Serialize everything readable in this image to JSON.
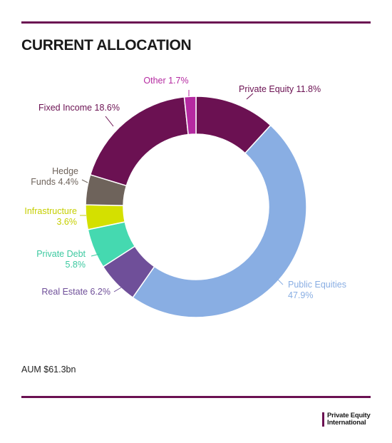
{
  "title": "CURRENT ALLOCATION",
  "aum": "AUM $61.3bn",
  "brand": {
    "line1": "Private Equity",
    "line2": "International"
  },
  "chart_data": {
    "type": "donut",
    "title": "CURRENT ALLOCATION",
    "unit": "%",
    "slices": [
      {
        "name": "Private Equity",
        "value": 11.8,
        "label": [
          "Private Equity 11.8%"
        ],
        "color": "#6b1152"
      },
      {
        "name": "Public Equities",
        "value": 47.9,
        "label": [
          "Public Equities",
          "47.9%"
        ],
        "color": "#89aee3"
      },
      {
        "name": "Real Estate",
        "value": 6.2,
        "label": [
          "Real Estate 6.2%"
        ],
        "color": "#6f4f99"
      },
      {
        "name": "Private Debt",
        "value": 5.8,
        "label": [
          "Private Debt",
          "5.8%"
        ],
        "color": "#45d9b0"
      },
      {
        "name": "Infrastructure",
        "value": 3.6,
        "label": [
          "Infrastructure",
          "3.6%"
        ],
        "color": "#d4e000"
      },
      {
        "name": "Hedge Funds",
        "value": 4.4,
        "label": [
          "Hedge",
          "Funds 4.4%"
        ],
        "color": "#6e635b"
      },
      {
        "name": "Fixed Income",
        "value": 18.6,
        "label": [
          "Fixed Income 18.6%"
        ],
        "color": "#6b1152"
      },
      {
        "name": "Other",
        "value": 1.7,
        "label": [
          "Other 1.7%"
        ],
        "color": "#b52aa1"
      }
    ],
    "label_colors": {
      "Private Equity": "#6b1152",
      "Public Equities": "#89aee3",
      "Real Estate": "#6f4f99",
      "Private Debt": "#3cc9a0",
      "Infrastructure": "#c6cf00",
      "Hedge Funds": "#6e635b",
      "Fixed Income": "#6b1152",
      "Other": "#b52aa1"
    }
  }
}
